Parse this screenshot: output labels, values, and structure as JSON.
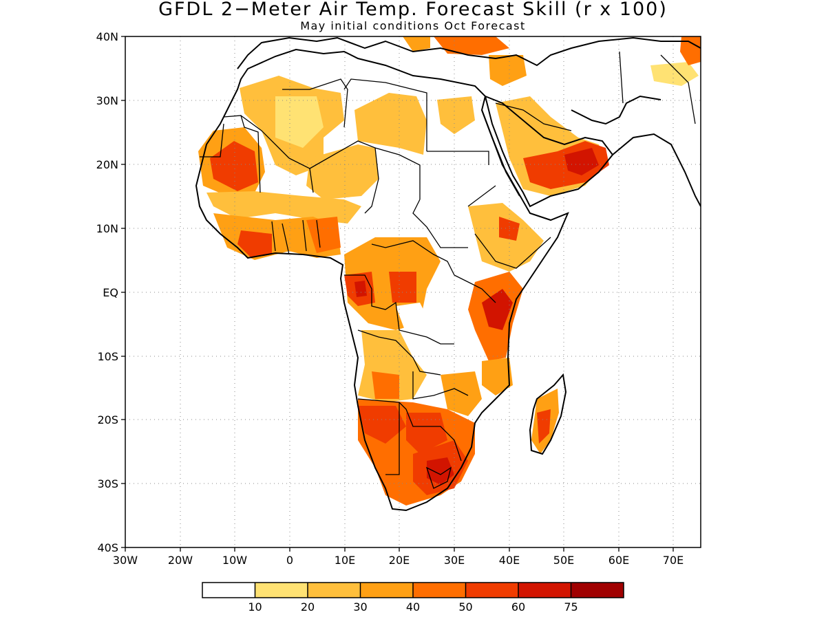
{
  "title": "GFDL 2−Meter Air Temp. Forecast Skill (r x 100)",
  "subtitle": "May initial conditions  Oct Forecast",
  "lat_labels": [
    "40N",
    "30N",
    "20N",
    "10N",
    "EQ",
    "10S",
    "20S",
    "30S",
    "40S"
  ],
  "lon_labels": [
    "30W",
    "20W",
    "10W",
    "0",
    "10E",
    "20E",
    "30E",
    "40E",
    "50E",
    "60E",
    "70E"
  ],
  "colorbar": {
    "labels": [
      "10",
      "20",
      "30",
      "40",
      "50",
      "60",
      "75"
    ],
    "colors": [
      "#ffffff",
      "#ffe273",
      "#ffbf3c",
      "#ffa014",
      "#ff6e00",
      "#f03c00",
      "#d21400",
      "#a00000"
    ]
  },
  "map_extent": {
    "lon": [
      -30,
      75
    ],
    "lat": [
      -40,
      40
    ]
  },
  "grid": "dotted"
}
